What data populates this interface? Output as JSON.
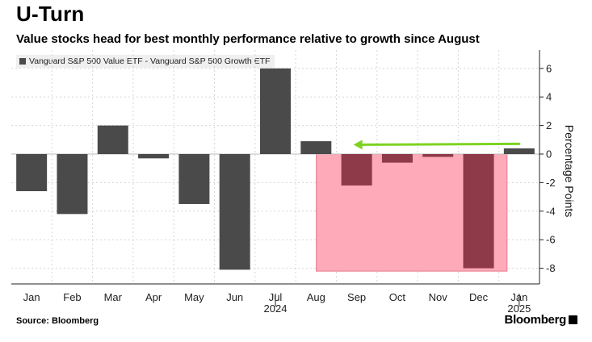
{
  "header": {
    "title": "U-Turn",
    "subtitle": "Value stocks head for best monthly performance relative to growth since August"
  },
  "legend": {
    "label": "Vanguard S&P 500 Value ETF - Vanguard S&P 500 Growth ETF"
  },
  "footer": {
    "source": "Source: Bloomberg",
    "brand": "Bloomberg"
  },
  "chart_data": {
    "type": "bar",
    "title": "U-Turn",
    "subtitle": "Value stocks head for best monthly performance relative to growth since August",
    "categories": [
      "Jan",
      "Feb",
      "Mar",
      "Apr",
      "May",
      "Jun",
      "Jul",
      "Aug",
      "Sep",
      "Oct",
      "Nov",
      "Dec",
      "Jan"
    ],
    "year_labels": [
      {
        "category_index": 6,
        "label": "2024"
      },
      {
        "category_index": 12,
        "label": "2025"
      }
    ],
    "series": [
      {
        "name": "Vanguard S&P 500 Value ETF - Vanguard S&P 500 Growth ETF",
        "values": [
          -2.6,
          -4.2,
          2.0,
          -0.3,
          -3.5,
          -8.1,
          6.0,
          0.9,
          -2.2,
          -0.6,
          -0.2,
          -8.0,
          0.4
        ]
      }
    ],
    "highlighted_indices": [
      8,
      9,
      10,
      11
    ],
    "highlight_region": {
      "from_index": 8,
      "to_index": 12,
      "ymin": -8.2,
      "ymax": 0
    },
    "arrow": {
      "from_index": 12,
      "to_index": 8,
      "value": 0.6
    },
    "yticks": [
      6,
      4,
      2,
      0,
      -2,
      -4,
      -6,
      -8
    ],
    "ylim": [
      -9.5,
      7.2
    ],
    "ylabel": "Percentage Points",
    "xlabel": "",
    "grid": true,
    "colors": {
      "bar": "#4a4a4a",
      "highlight_bar": "#8f3a49",
      "highlight_region": "#ffaab8",
      "highlight_region_border": "#e8788d",
      "arrow": "#7ed321",
      "grid": "#d6d6d6"
    }
  }
}
